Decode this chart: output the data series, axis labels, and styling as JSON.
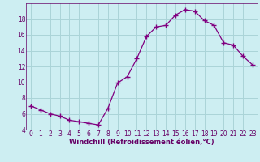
{
  "x": [
    0,
    1,
    2,
    3,
    4,
    5,
    6,
    7,
    8,
    9,
    10,
    11,
    12,
    13,
    14,
    15,
    16,
    17,
    18,
    19,
    20,
    21,
    22,
    23
  ],
  "y": [
    7.0,
    6.5,
    6.0,
    5.7,
    5.2,
    5.0,
    4.8,
    4.6,
    6.7,
    9.9,
    10.7,
    13.0,
    15.8,
    17.0,
    17.2,
    18.5,
    19.2,
    19.0,
    17.8,
    17.2,
    15.0,
    14.7,
    13.3,
    12.2
  ],
  "line_color": "#800080",
  "marker": "+",
  "marker_size": 4,
  "marker_linewidth": 1.0,
  "xlabel": "Windchill (Refroidissement éolien,°C)",
  "xlim": [
    -0.5,
    23.5
  ],
  "ylim": [
    4,
    20
  ],
  "yticks": [
    4,
    6,
    8,
    10,
    12,
    14,
    16,
    18
  ],
  "xticks": [
    0,
    1,
    2,
    3,
    4,
    5,
    6,
    7,
    8,
    9,
    10,
    11,
    12,
    13,
    14,
    15,
    16,
    17,
    18,
    19,
    20,
    21,
    22,
    23
  ],
  "background_color": "#cdeef2",
  "grid_color": "#aad4d8",
  "label_color": "#660066",
  "tick_fontsize": 5.5,
  "xlabel_fontsize": 6.0
}
